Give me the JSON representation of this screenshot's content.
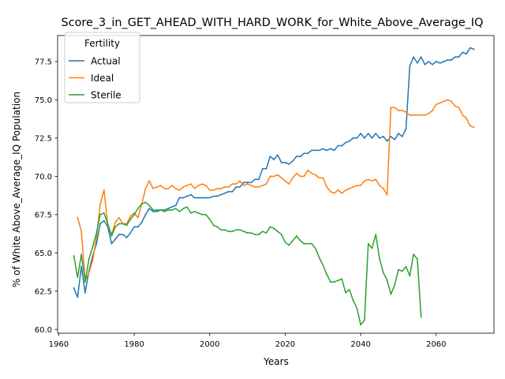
{
  "chart_data": {
    "type": "line",
    "title": "Score_3_in_GET_AHEAD_WITH_HARD_WORK_for_White_Above_Average_IQ",
    "xlabel": "Years",
    "ylabel": "% of White Above_Average_IQ Population",
    "xlim": [
      1959.7,
      2075.3
    ],
    "ylim": [
      59.75,
      79.2
    ],
    "xticks": [
      1960,
      1980,
      2000,
      2020,
      2040,
      2060
    ],
    "yticks": [
      60.0,
      62.5,
      65.0,
      67.5,
      70.0,
      72.5,
      75.0,
      77.5
    ],
    "grid": false,
    "legend": {
      "title": "Fertility",
      "position": "top-left"
    },
    "series": [
      {
        "name": "Actual",
        "color": "#1f77b4",
        "x": [
          1964,
          1965,
          1966,
          1967,
          1968,
          1969,
          1970,
          1971,
          1972,
          1973,
          1974,
          1975,
          1976,
          1977,
          1978,
          1979,
          1980,
          1981,
          1982,
          1983,
          1984,
          1985,
          1986,
          1987,
          1988,
          1989,
          1990,
          1991,
          1992,
          1993,
          1994,
          1995,
          1996,
          1997,
          1998,
          1999,
          2000,
          2001,
          2002,
          2003,
          2004,
          2005,
          2006,
          2007,
          2008,
          2009,
          2010,
          2011,
          2012,
          2013,
          2014,
          2015,
          2016,
          2017,
          2018,
          2019,
          2020,
          2021,
          2022,
          2023,
          2024,
          2025,
          2026,
          2027,
          2028,
          2029,
          2030,
          2031,
          2032,
          2033,
          2034,
          2035,
          2036,
          2037,
          2038,
          2039,
          2040,
          2041,
          2042,
          2043,
          2044,
          2045,
          2046,
          2047,
          2048,
          2049,
          2050,
          2051,
          2052,
          2053,
          2054,
          2055,
          2056,
          2057,
          2058,
          2059,
          2060,
          2061,
          2062,
          2063,
          2064,
          2065,
          2066,
          2067,
          2068,
          2069,
          2070
        ],
        "y": [
          62.7,
          62.1,
          64.1,
          62.4,
          63.8,
          64.8,
          65.6,
          66.9,
          67.1,
          66.7,
          65.6,
          65.9,
          66.2,
          66.2,
          66.0,
          66.3,
          66.7,
          66.7,
          67.0,
          67.5,
          67.9,
          67.7,
          67.7,
          67.8,
          67.8,
          67.9,
          68.0,
          68.1,
          68.6,
          68.6,
          68.7,
          68.8,
          68.6,
          68.6,
          68.6,
          68.6,
          68.6,
          68.7,
          68.7,
          68.8,
          68.9,
          69.0,
          69.0,
          69.3,
          69.3,
          69.6,
          69.6,
          69.6,
          69.8,
          69.8,
          70.5,
          70.5,
          71.3,
          71.1,
          71.4,
          70.9,
          70.9,
          70.8,
          71.0,
          71.3,
          71.3,
          71.5,
          71.5,
          71.7,
          71.7,
          71.7,
          71.8,
          71.7,
          71.8,
          71.7,
          72.0,
          72.0,
          72.2,
          72.3,
          72.5,
          72.5,
          72.8,
          72.5,
          72.8,
          72.5,
          72.8,
          72.5,
          72.6,
          72.3,
          72.6,
          72.4,
          72.8,
          72.6,
          73.1,
          77.2,
          77.8,
          77.4,
          77.8,
          77.3,
          77.5,
          77.3,
          77.5,
          77.4,
          77.5,
          77.6,
          77.6,
          77.8,
          77.8,
          78.1,
          78.0,
          78.4,
          78.3
        ]
      },
      {
        "name": "Ideal",
        "color": "#ff7f0e",
        "x": [
          1965,
          1966,
          1967,
          1968,
          1969,
          1970,
          1971,
          1972,
          1973,
          1974,
          1975,
          1976,
          1977,
          1978,
          1979,
          1980,
          1981,
          1982,
          1983,
          1984,
          1985,
          1986,
          1987,
          1988,
          1989,
          1990,
          1991,
          1992,
          1993,
          1994,
          1995,
          1996,
          1997,
          1998,
          1999,
          2000,
          2001,
          2002,
          2003,
          2004,
          2005,
          2006,
          2007,
          2008,
          2009,
          2010,
          2011,
          2012,
          2013,
          2014,
          2015,
          2016,
          2017,
          2018,
          2019,
          2020,
          2021,
          2022,
          2023,
          2024,
          2025,
          2026,
          2027,
          2028,
          2029,
          2030,
          2031,
          2032,
          2033,
          2034,
          2035,
          2036,
          2037,
          2038,
          2039,
          2040,
          2041,
          2042,
          2043,
          2044,
          2045,
          2046,
          2047,
          2048,
          2049,
          2050,
          2051,
          2052,
          2053,
          2054,
          2055,
          2056,
          2057,
          2058,
          2059,
          2060,
          2061,
          2062,
          2063,
          2064,
          2065,
          2066,
          2067,
          2068,
          2069,
          2070
        ],
        "y": [
          67.3,
          66.4,
          63.2,
          63.7,
          64.5,
          66.0,
          68.2,
          69.1,
          66.8,
          66.2,
          67.0,
          67.3,
          66.9,
          66.9,
          67.4,
          67.6,
          67.3,
          68.2,
          69.2,
          69.7,
          69.2,
          69.3,
          69.4,
          69.2,
          69.2,
          69.4,
          69.2,
          69.1,
          69.3,
          69.4,
          69.5,
          69.2,
          69.4,
          69.5,
          69.4,
          69.1,
          69.1,
          69.2,
          69.2,
          69.3,
          69.3,
          69.5,
          69.5,
          69.7,
          69.4,
          69.5,
          69.4,
          69.3,
          69.3,
          69.4,
          69.5,
          70.0,
          70.0,
          70.1,
          69.9,
          69.7,
          69.5,
          69.9,
          70.2,
          70.0,
          70.0,
          70.4,
          70.2,
          70.1,
          69.9,
          69.9,
          69.3,
          69.0,
          68.9,
          69.1,
          68.9,
          69.1,
          69.2,
          69.3,
          69.4,
          69.4,
          69.7,
          69.8,
          69.7,
          69.8,
          69.4,
          69.2,
          68.8,
          74.5,
          74.5,
          74.3,
          74.3,
          74.2,
          74.0,
          74.0,
          74.0,
          74.0,
          74.0,
          74.1,
          74.3,
          74.7,
          74.8,
          74.9,
          75.0,
          74.9,
          74.6,
          74.5,
          74.0,
          73.8,
          73.3,
          73.2
        ]
      },
      {
        "name": "Sterile",
        "color": "#2ca02c",
        "x": [
          1964,
          1965,
          1966,
          1967,
          1968,
          1969,
          1970,
          1971,
          1972,
          1973,
          1974,
          1975,
          1976,
          1977,
          1978,
          1979,
          1980,
          1981,
          1982,
          1983,
          1984,
          1985,
          1986,
          1987,
          1988,
          1989,
          1990,
          1991,
          1992,
          1993,
          1994,
          1995,
          1996,
          1997,
          1998,
          1999,
          2000,
          2001,
          2002,
          2003,
          2004,
          2005,
          2006,
          2007,
          2008,
          2009,
          2010,
          2011,
          2012,
          2013,
          2014,
          2015,
          2016,
          2017,
          2018,
          2019,
          2020,
          2021,
          2022,
          2023,
          2024,
          2025,
          2026,
          2027,
          2028,
          2029,
          2030,
          2031,
          2032,
          2033,
          2034,
          2035,
          2036,
          2037,
          2038,
          2039,
          2040,
          2041,
          2042,
          2043,
          2044,
          2045,
          2046,
          2047,
          2048,
          2049,
          2050,
          2051,
          2052,
          2053,
          2054,
          2055,
          2056
        ],
        "y": [
          64.8,
          63.4,
          64.9,
          63.1,
          64.6,
          65.4,
          66.3,
          67.5,
          67.6,
          66.9,
          66.1,
          66.7,
          66.9,
          66.9,
          66.8,
          67.2,
          67.5,
          67.9,
          68.2,
          68.3,
          68.1,
          67.8,
          67.8,
          67.8,
          67.7,
          67.8,
          67.8,
          67.9,
          67.7,
          67.9,
          68.0,
          67.6,
          67.7,
          67.6,
          67.5,
          67.5,
          67.2,
          66.8,
          66.7,
          66.5,
          66.5,
          66.4,
          66.4,
          66.5,
          66.5,
          66.4,
          66.3,
          66.3,
          66.2,
          66.2,
          66.4,
          66.3,
          66.7,
          66.6,
          66.4,
          66.2,
          65.7,
          65.5,
          65.8,
          66.1,
          65.8,
          65.6,
          65.6,
          65.6,
          65.3,
          64.7,
          64.2,
          63.6,
          63.1,
          63.1,
          63.2,
          63.3,
          62.4,
          62.6,
          61.9,
          61.4,
          60.3,
          60.6,
          65.6,
          65.3,
          66.2,
          64.6,
          63.7,
          63.2,
          62.3,
          62.9,
          63.9,
          63.8,
          64.1,
          63.5,
          64.9,
          64.6,
          60.8
        ]
      }
    ]
  }
}
